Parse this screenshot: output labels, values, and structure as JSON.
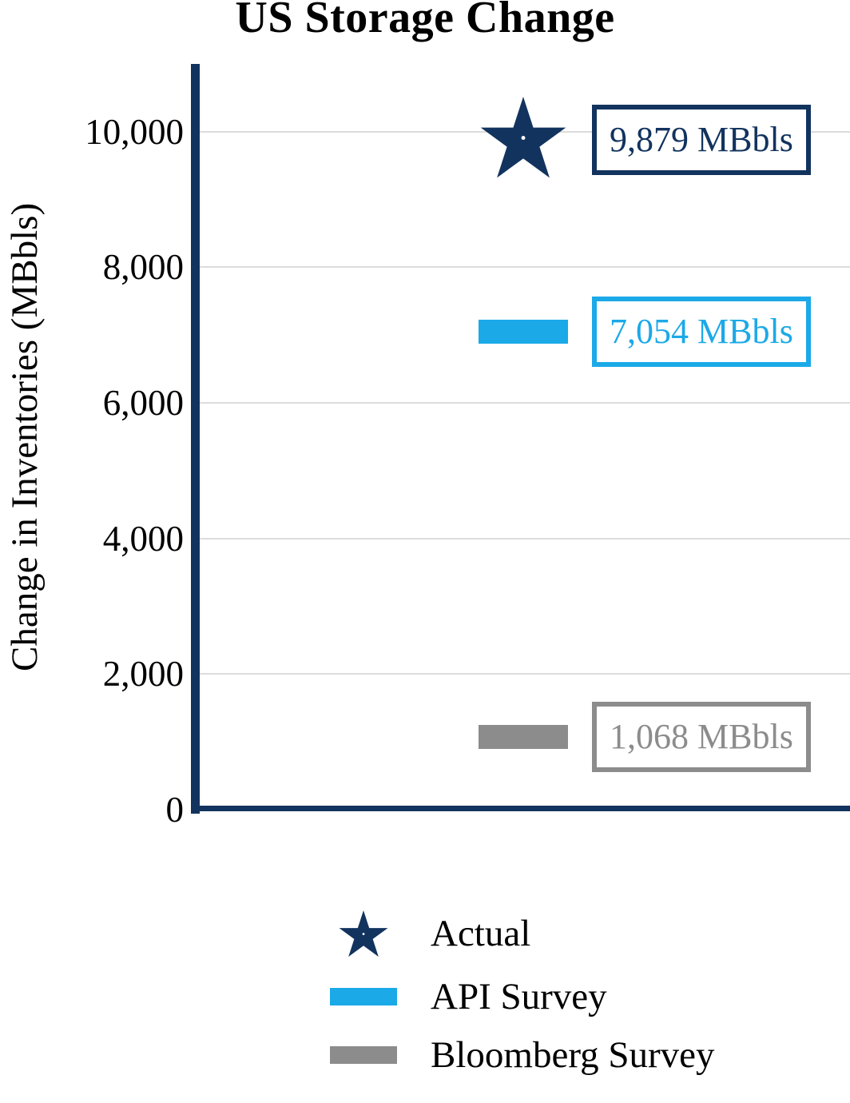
{
  "chart_data": {
    "type": "scatter",
    "title": "US Storage Change",
    "xlabel": "",
    "ylabel": "Change in Inventories (MBbls)",
    "ylim": [
      0,
      11000
    ],
    "yticks": [
      0,
      2000,
      4000,
      6000,
      8000,
      10000
    ],
    "ytick_labels": [
      "0",
      "2,000",
      "4,000",
      "6,000",
      "8,000",
      "10,000"
    ],
    "grid": true,
    "legend_position": "bottom",
    "series": [
      {
        "name": "Actual",
        "marker": "star",
        "color": "#12335E",
        "value": 9879,
        "label": "9,879 MBbls"
      },
      {
        "name": "API Survey",
        "marker": "dash",
        "color": "#1BA9E8",
        "value": 7054,
        "label": "7,054 MBbls"
      },
      {
        "name": "Bloomberg Survey",
        "marker": "dash",
        "color": "#8C8C8C",
        "value": 1068,
        "label": "1,068 MBbls"
      }
    ]
  },
  "colors": {
    "axis": "#12335E",
    "grid": "#DCDCDC",
    "background": "#FFFFFF",
    "text": "#000000"
  }
}
